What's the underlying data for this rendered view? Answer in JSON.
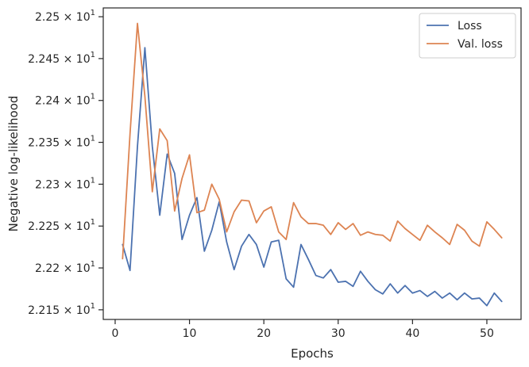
{
  "chart_data": {
    "type": "line",
    "xlabel": "Epochs",
    "ylabel": "Negative log-likelihood",
    "xlim": [
      -1.6,
      54.6
    ],
    "ylim": [
      22.1385,
      22.5105
    ],
    "xticks": [
      0,
      10,
      20,
      30,
      40,
      50
    ],
    "yticks": [
      {
        "value": 22.15,
        "mantissa": "2.215",
        "base": "10",
        "exp": "1"
      },
      {
        "value": 22.2,
        "mantissa": "2.22",
        "base": "10",
        "exp": "1"
      },
      {
        "value": 22.25,
        "mantissa": "2.225",
        "base": "10",
        "exp": "1"
      },
      {
        "value": 22.3,
        "mantissa": "2.23",
        "base": "10",
        "exp": "1"
      },
      {
        "value": 22.35,
        "mantissa": "2.235",
        "base": "10",
        "exp": "1"
      },
      {
        "value": 22.4,
        "mantissa": "2.24",
        "base": "10",
        "exp": "1"
      },
      {
        "value": 22.45,
        "mantissa": "2.245",
        "base": "10",
        "exp": "1"
      },
      {
        "value": 22.5,
        "mantissa": "2.25",
        "base": "10",
        "exp": "1"
      }
    ],
    "x": [
      1,
      2,
      3,
      4,
      5,
      6,
      7,
      8,
      9,
      10,
      11,
      12,
      13,
      14,
      15,
      16,
      17,
      18,
      19,
      20,
      21,
      22,
      23,
      24,
      25,
      26,
      27,
      28,
      29,
      30,
      31,
      32,
      33,
      34,
      35,
      36,
      37,
      38,
      39,
      40,
      41,
      42,
      43,
      44,
      45,
      46,
      47,
      48,
      49,
      50,
      51,
      52
    ],
    "series": [
      {
        "name": "Loss",
        "color": "#4c72b0",
        "values": [
          22.228,
          22.197,
          22.345,
          22.463,
          22.345,
          22.263,
          22.336,
          22.313,
          22.234,
          22.263,
          22.284,
          22.22,
          22.245,
          22.279,
          22.231,
          22.198,
          22.226,
          22.24,
          22.228,
          22.201,
          22.231,
          22.233,
          22.187,
          22.177,
          22.228,
          22.21,
          22.191,
          22.188,
          22.198,
          22.183,
          22.184,
          22.178,
          22.196,
          22.184,
          22.174,
          22.169,
          22.181,
          22.17,
          22.179,
          22.17,
          22.173,
          22.166,
          22.172,
          22.164,
          22.17,
          22.162,
          22.17,
          22.163,
          22.164,
          22.155,
          22.17,
          22.16
        ]
      },
      {
        "name": "Val. loss",
        "color": "#dd8452",
        "values": [
          22.211,
          22.36,
          22.492,
          22.405,
          22.291,
          22.366,
          22.352,
          22.268,
          22.307,
          22.335,
          22.266,
          22.269,
          22.3,
          22.282,
          22.243,
          22.267,
          22.281,
          22.28,
          22.254,
          22.268,
          22.273,
          22.243,
          22.234,
          22.278,
          22.261,
          22.253,
          22.253,
          22.251,
          22.24,
          22.254,
          22.246,
          22.253,
          22.239,
          22.243,
          22.24,
          22.239,
          22.232,
          22.256,
          22.247,
          22.24,
          22.233,
          22.251,
          22.243,
          22.236,
          22.228,
          22.252,
          22.245,
          22.232,
          22.226,
          22.255,
          22.246,
          22.236
        ]
      }
    ],
    "legend": {
      "position": "top-right"
    },
    "grid": false
  }
}
